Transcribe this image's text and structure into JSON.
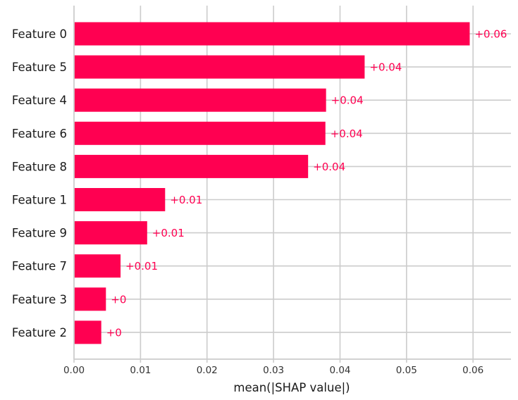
{
  "chart_data": {
    "type": "bar",
    "orientation": "horizontal",
    "categories": [
      "Feature 0",
      "Feature 5",
      "Feature 4",
      "Feature 6",
      "Feature 8",
      "Feature 1",
      "Feature 9",
      "Feature 7",
      "Feature 3",
      "Feature 2"
    ],
    "values": [
      0.0595,
      0.0437,
      0.0379,
      0.0378,
      0.0352,
      0.0137,
      0.011,
      0.007,
      0.0048,
      0.0041
    ],
    "value_labels": [
      "+0.06",
      "+0.04",
      "+0.04",
      "+0.04",
      "+0.04",
      "+0.01",
      "+0.01",
      "+0.01",
      "+0",
      "+0"
    ],
    "xlabel": "mean(|SHAP value|)",
    "ylabel": "",
    "title": "",
    "xlim": [
      0,
      0.0657
    ],
    "xticks": [
      0.0,
      0.01,
      0.02,
      0.03,
      0.04,
      0.05,
      0.06
    ],
    "xtick_labels": [
      "0.00",
      "0.01",
      "0.02",
      "0.03",
      "0.04",
      "0.05",
      "0.06"
    ],
    "grid": true,
    "legend": "none",
    "colors": {
      "bar": "#ff0051",
      "value_label": "#ff0051",
      "grid": "#cccccc",
      "axis": "#cccccc",
      "text": "#1a1a1a"
    }
  }
}
